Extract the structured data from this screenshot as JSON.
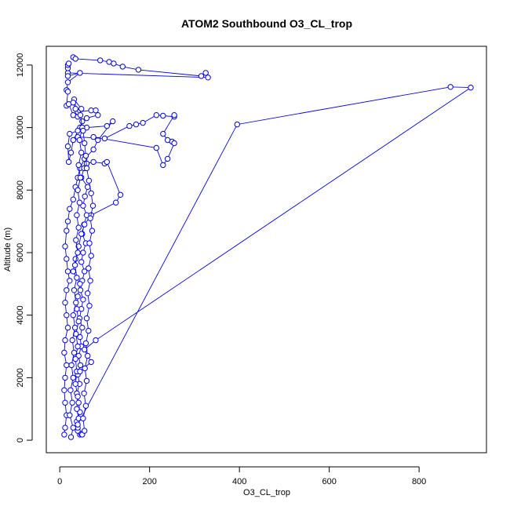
{
  "chart_data": {
    "type": "line",
    "title": "ATOM2 Southbound O3_CL_trop",
    "xlabel": "O3_CL_trop",
    "ylabel": "Altitude (m)",
    "xlim": [
      -30,
      950
    ],
    "ylim": [
      -400,
      12600
    ],
    "xticks": [
      0,
      200,
      400,
      600,
      800
    ],
    "yticks": [
      0,
      2000,
      4000,
      6000,
      8000,
      10000,
      12000
    ],
    "grid": false,
    "color": "#0000ff",
    "marker": "open-circle",
    "series": [
      {
        "values_xy": [
          [
            30,
            12250
          ],
          [
            35,
            12200
          ],
          [
            90,
            12150
          ],
          [
            110,
            12100
          ],
          [
            120,
            12050
          ],
          [
            140,
            11950
          ],
          [
            175,
            11850
          ],
          [
            315,
            11650
          ],
          [
            325,
            11750
          ],
          [
            330,
            11600
          ],
          [
            18,
            11750
          ],
          [
            18,
            11900
          ],
          [
            18,
            12000
          ],
          [
            20,
            12050
          ],
          [
            18,
            11650
          ],
          [
            45,
            11750
          ],
          [
            18,
            11450
          ],
          [
            15,
            11200
          ],
          [
            18,
            11150
          ],
          [
            15,
            10700
          ],
          [
            20,
            10750
          ],
          [
            30,
            10400
          ],
          [
            40,
            10350
          ],
          [
            32,
            10900
          ],
          [
            48,
            10600
          ],
          [
            40,
            10500
          ],
          [
            70,
            10550
          ],
          [
            80,
            10550
          ],
          [
            85,
            10400
          ],
          [
            60,
            10300
          ],
          [
            50,
            10200
          ],
          [
            45,
            10000
          ],
          [
            30,
            9600
          ],
          [
            25,
            9200
          ],
          [
            20,
            8900
          ],
          [
            18,
            9400
          ],
          [
            22,
            9800
          ],
          [
            40,
            9900
          ],
          [
            60,
            10000
          ],
          [
            105,
            10050
          ],
          [
            118,
            10200
          ],
          [
            85,
            9600
          ],
          [
            75,
            9300
          ],
          [
            55,
            9000
          ],
          [
            45,
            8700
          ],
          [
            40,
            8400
          ],
          [
            35,
            8100
          ],
          [
            30,
            7700
          ],
          [
            22,
            7400
          ],
          [
            18,
            7000
          ],
          [
            15,
            6700
          ],
          [
            12,
            6200
          ],
          [
            15,
            5800
          ],
          [
            18,
            5400
          ],
          [
            22,
            5100
          ],
          [
            15,
            4800
          ],
          [
            12,
            4400
          ],
          [
            15,
            4000
          ],
          [
            18,
            3600
          ],
          [
            12,
            3200
          ],
          [
            10,
            2800
          ],
          [
            15,
            2400
          ],
          [
            12,
            2000
          ],
          [
            10,
            1600
          ],
          [
            12,
            1200
          ],
          [
            15,
            800
          ],
          [
            12,
            400
          ],
          [
            10,
            180
          ]
        ]
      },
      {
        "values_xy": [
          [
            45,
            180
          ],
          [
            40,
            300
          ],
          [
            38,
            600
          ],
          [
            45,
            900
          ],
          [
            42,
            1200
          ],
          [
            38,
            1500
          ],
          [
            44,
            1800
          ],
          [
            40,
            2100
          ],
          [
            46,
            2400
          ],
          [
            42,
            2700
          ],
          [
            48,
            3000
          ],
          [
            45,
            3300
          ],
          [
            50,
            3600
          ],
          [
            44,
            3900
          ],
          [
            48,
            4200
          ],
          [
            52,
            4500
          ],
          [
            46,
            4800
          ],
          [
            50,
            5100
          ],
          [
            55,
            5400
          ],
          [
            48,
            5700
          ],
          [
            52,
            6000
          ],
          [
            58,
            6300
          ],
          [
            50,
            6600
          ],
          [
            54,
            6900
          ],
          [
            60,
            7200
          ],
          [
            52,
            7500
          ],
          [
            56,
            7800
          ],
          [
            62,
            8100
          ],
          [
            48,
            8400
          ],
          [
            54,
            8700
          ],
          [
            60,
            8850
          ],
          [
            75,
            8900
          ],
          [
            100,
            8850
          ],
          [
            105,
            8900
          ],
          [
            135,
            7850
          ],
          [
            125,
            7600
          ],
          [
            70,
            7200
          ],
          [
            55,
            6900
          ],
          [
            48,
            6600
          ],
          [
            42,
            6200
          ],
          [
            35,
            5800
          ],
          [
            30,
            5400
          ],
          [
            45,
            5000
          ],
          [
            40,
            4600
          ],
          [
            38,
            4200
          ],
          [
            42,
            3800
          ],
          [
            36,
            3400
          ],
          [
            40,
            3000
          ],
          [
            35,
            2600
          ],
          [
            38,
            2200
          ],
          [
            35,
            1800
          ],
          [
            40,
            1400
          ],
          [
            38,
            1000
          ],
          [
            42,
            700
          ],
          [
            40,
            400
          ],
          [
            48,
            200
          ],
          [
            50,
            180
          ]
        ]
      },
      {
        "values_xy": [
          [
            40,
            9700
          ],
          [
            100,
            9650
          ],
          [
            155,
            10050
          ],
          [
            170,
            10100
          ],
          [
            185,
            10150
          ],
          [
            215,
            10400
          ],
          [
            230,
            10380
          ],
          [
            255,
            10350
          ],
          [
            255,
            10400
          ],
          [
            230,
            9800
          ],
          [
            240,
            9600
          ],
          [
            250,
            9550
          ],
          [
            255,
            9500
          ],
          [
            240,
            9000
          ],
          [
            230,
            8800
          ],
          [
            215,
            9350
          ],
          [
            75,
            9700
          ]
        ]
      },
      {
        "values_xy": [
          [
            40,
            500
          ],
          [
            395,
            10100
          ],
          [
            870,
            11300
          ],
          [
            915,
            11280
          ],
          [
            80,
            3200
          ],
          [
            55,
            2900
          ],
          [
            70,
            2500
          ],
          [
            45,
            2200
          ]
        ]
      },
      {
        "values_xy": [
          [
            25,
            100
          ],
          [
            30,
            400
          ],
          [
            22,
            800
          ],
          [
            28,
            1200
          ],
          [
            24,
            1600
          ],
          [
            30,
            2000
          ],
          [
            26,
            2400
          ],
          [
            32,
            2800
          ],
          [
            28,
            3200
          ],
          [
            34,
            3600
          ],
          [
            30,
            4000
          ],
          [
            36,
            4400
          ],
          [
            32,
            4800
          ],
          [
            38,
            5200
          ],
          [
            34,
            5600
          ],
          [
            40,
            6000
          ],
          [
            36,
            6400
          ],
          [
            42,
            6800
          ],
          [
            38,
            7200
          ],
          [
            44,
            7600
          ],
          [
            40,
            8000
          ],
          [
            46,
            8400
          ],
          [
            42,
            8800
          ],
          [
            48,
            9200
          ],
          [
            44,
            9600
          ],
          [
            50,
            10000
          ],
          [
            46,
            10400
          ],
          [
            35,
            10600
          ],
          [
            30,
            10800
          ]
        ]
      },
      {
        "values_xy": [
          [
            55,
            300
          ],
          [
            52,
            700
          ],
          [
            58,
            1100
          ],
          [
            54,
            1500
          ],
          [
            60,
            1900
          ],
          [
            56,
            2300
          ],
          [
            62,
            2700
          ],
          [
            58,
            3100
          ],
          [
            64,
            3500
          ],
          [
            60,
            3900
          ],
          [
            66,
            4300
          ],
          [
            62,
            4700
          ],
          [
            68,
            5100
          ],
          [
            64,
            5500
          ],
          [
            70,
            5900
          ],
          [
            66,
            6300
          ],
          [
            72,
            6700
          ],
          [
            68,
            7100
          ],
          [
            74,
            7500
          ],
          [
            70,
            7900
          ],
          [
            65,
            8300
          ],
          [
            60,
            8700
          ],
          [
            58,
            9100
          ],
          [
            55,
            9500
          ],
          [
            52,
            9900
          ]
        ]
      }
    ]
  }
}
